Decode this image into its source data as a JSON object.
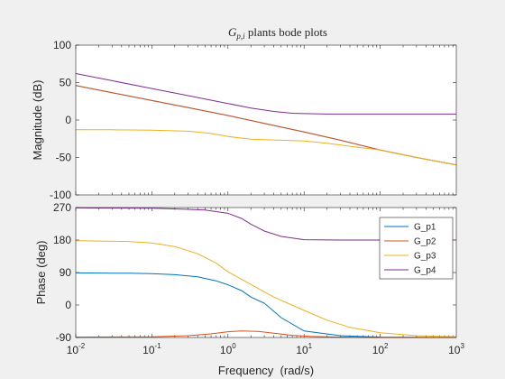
{
  "chart_data": {
    "type": "line",
    "title": "G_{p,i} plants bode plots",
    "title_main": "G",
    "title_sub": "p,i",
    "title_rest": " plants bode plots",
    "x_scale": "log",
    "xlim": [
      0.01,
      1000
    ],
    "x_ticks": [
      0.01,
      0.1,
      1,
      10,
      100,
      1000
    ],
    "x_tick_labels": [
      {
        "base": "10",
        "exp": "-2"
      },
      {
        "base": "10",
        "exp": "-1"
      },
      {
        "base": "10",
        "exp": "0"
      },
      {
        "base": "10",
        "exp": "1"
      },
      {
        "base": "10",
        "exp": "2"
      },
      {
        "base": "10",
        "exp": "3"
      }
    ],
    "xlabel": "Frequency  (rad/s)",
    "legend_position": "right",
    "magnitude": {
      "ylabel": "Magnitude (dB)",
      "ylim": [
        -100,
        100
      ],
      "y_ticks": [
        -100,
        -50,
        0,
        50,
        100
      ],
      "series": [
        {
          "name": "G_p1",
          "color": "#0072BD",
          "x": [
            0.01,
            0.03,
            0.1,
            0.3,
            1,
            3,
            10,
            30,
            100,
            300,
            1000
          ],
          "y": [
            46,
            36.5,
            26,
            16.5,
            6,
            -4.5,
            -16,
            -27,
            -40,
            -50,
            -60
          ]
        },
        {
          "name": "G_p2",
          "color": "#D95319",
          "x": [
            0.01,
            0.03,
            0.1,
            0.3,
            1,
            3,
            10,
            30,
            100,
            300,
            1000
          ],
          "y": [
            46,
            36.5,
            26,
            16.5,
            6,
            -4.5,
            -16,
            -27,
            -40,
            -50,
            -60
          ]
        },
        {
          "name": "G_p3",
          "color": "#EDB120",
          "x": [
            0.01,
            0.03,
            0.1,
            0.3,
            0.6,
            1,
            2,
            5,
            10,
            20,
            40,
            100,
            300,
            1000
          ],
          "y": [
            -13,
            -13,
            -13.5,
            -15,
            -18,
            -22,
            -25.5,
            -27,
            -28,
            -31,
            -35,
            -40,
            -50,
            -60
          ]
        },
        {
          "name": "G_p4",
          "color": "#7E2F8E",
          "x": [
            0.01,
            0.03,
            0.1,
            0.3,
            1,
            2,
            4,
            7,
            10,
            20,
            100,
            1000
          ],
          "y": [
            62,
            52.5,
            42,
            32.5,
            22,
            16,
            11.5,
            9,
            8.5,
            8,
            8,
            8
          ]
        }
      ]
    },
    "phase": {
      "ylabel": "Phase (deg)",
      "ylim": [
        -90,
        270
      ],
      "y_ticks": [
        -90,
        0,
        90,
        180,
        270
      ],
      "series": [
        {
          "name": "G_p1",
          "color": "#0072BD",
          "x": [
            0.01,
            0.05,
            0.1,
            0.2,
            0.4,
            0.7,
            1,
            1.5,
            2,
            3,
            5,
            10,
            30,
            100,
            1000
          ],
          "y": [
            89,
            88,
            87,
            84,
            78,
            67,
            56,
            40,
            22,
            5,
            -35,
            -72,
            -85,
            -89,
            -90
          ]
        },
        {
          "name": "G_p2",
          "color": "#D95319",
          "x": [
            0.01,
            0.1,
            0.3,
            0.6,
            1,
            1.5,
            2.5,
            4,
            7,
            12,
            30,
            100,
            1000
          ],
          "y": [
            -89,
            -88,
            -85,
            -80,
            -74,
            -72,
            -73,
            -78,
            -84,
            -87,
            -89,
            -90,
            -90
          ]
        },
        {
          "name": "G_p3",
          "color": "#EDB120",
          "x": [
            0.01,
            0.05,
            0.1,
            0.2,
            0.4,
            0.7,
            1,
            2,
            4,
            10,
            20,
            40,
            100,
            300,
            1000
          ],
          "y": [
            178,
            176,
            172,
            162,
            142,
            116,
            92,
            57,
            22,
            -15,
            -42,
            -62,
            -77,
            -85,
            -88
          ]
        },
        {
          "name": "G_p4",
          "color": "#7E2F8E",
          "x": [
            0.01,
            0.1,
            0.3,
            0.5,
            1,
            1.5,
            2,
            3,
            5,
            10,
            30,
            100,
            1000
          ],
          "y": [
            269,
            268,
            265,
            263,
            254,
            240,
            224,
            205,
            190,
            181,
            180,
            180,
            180
          ]
        }
      ]
    }
  }
}
